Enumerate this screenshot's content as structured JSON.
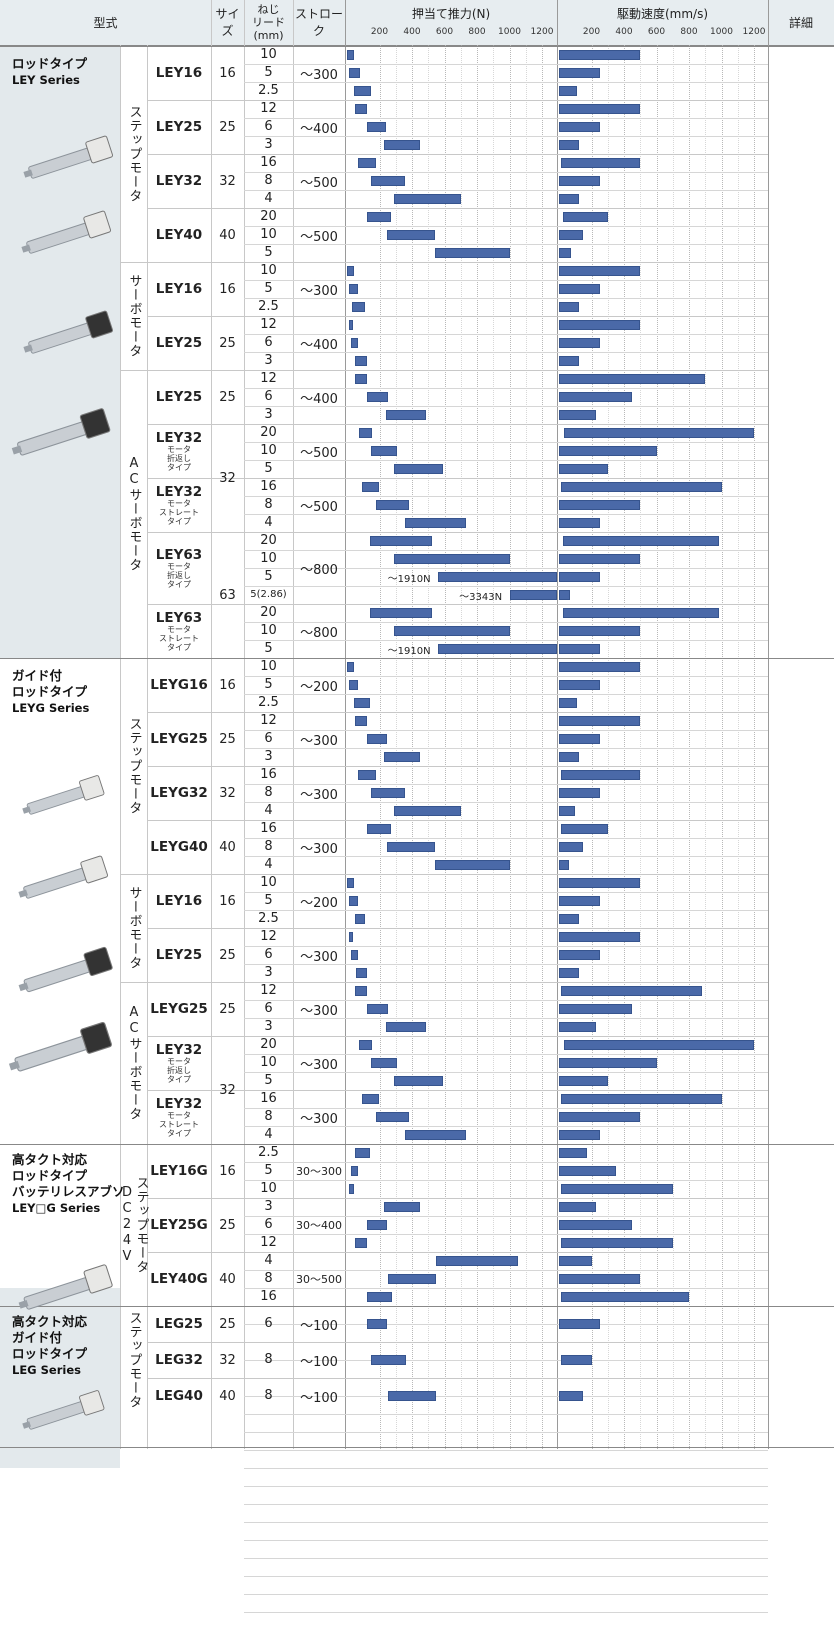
{
  "headers": {
    "model_type": "型式",
    "size": "サイズ",
    "lead": "ねじ\nリード\n(mm)",
    "stroke": "ストローク",
    "force": "押当て推力(N)",
    "speed": "駆動速度(mm/s)",
    "details": "詳細"
  },
  "axis_ticks": [
    "200",
    "400",
    "600",
    "800",
    "1000",
    "1200"
  ],
  "bar_color": "#4a69a8",
  "series": [
    {
      "id": "ley",
      "lines": [
        "ロッドタイプ",
        "LEY Series"
      ]
    },
    {
      "id": "leyg",
      "lines": [
        "ガイド付",
        "ロッドタイプ",
        "LEYG Series"
      ]
    },
    {
      "id": "leyg_batt",
      "lines": [
        "高タクト対応",
        "ロッドタイプ",
        "バッテリレスアブソ",
        "LEY□G Series"
      ]
    },
    {
      "id": "leg",
      "lines": [
        "高タクト対応",
        "ガイド付",
        "ロッドタイプ",
        "LEG Series"
      ]
    }
  ],
  "motor_groups": [
    {
      "label": "ステップモータ"
    },
    {
      "label": "サーボモータ"
    },
    {
      "label": "ACサーボモータ"
    },
    {
      "label": "ステップモータ"
    },
    {
      "label": "サーボモータ"
    },
    {
      "label": "ACサーボモータ"
    },
    {
      "label": "ステップモータDC24V"
    },
    {
      "label": "ステップモータ"
    }
  ],
  "models": [
    {
      "name": "LEY16",
      "note": ""
    },
    {
      "name": "LEY25",
      "note": ""
    },
    {
      "name": "LEY32",
      "note": ""
    },
    {
      "name": "LEY40",
      "note": ""
    },
    {
      "name": "LEY16",
      "note": ""
    },
    {
      "name": "LEY25",
      "note": ""
    },
    {
      "name": "LEY25",
      "note": ""
    },
    {
      "name": "LEY32",
      "note": "モータ\n折返し\nタイプ"
    },
    {
      "name": "LEY32",
      "note": "モータ\nストレート\nタイプ"
    },
    {
      "name": "LEY63",
      "note": "モータ\n折返し\nタイプ"
    },
    {
      "name": "LEY63",
      "note": "モータ\nストレート\nタイプ"
    },
    {
      "name": "LEYG16",
      "note": ""
    },
    {
      "name": "LEYG25",
      "note": ""
    },
    {
      "name": "LEYG32",
      "note": ""
    },
    {
      "name": "LEYG40",
      "note": ""
    },
    {
      "name": "LEY16",
      "note": ""
    },
    {
      "name": "LEY25",
      "note": ""
    },
    {
      "name": "LEYG25",
      "note": ""
    },
    {
      "name": "LEY32",
      "note": "モータ\n折返し\nタイプ"
    },
    {
      "name": "LEY32",
      "note": "モータ\nストレート\nタイプ"
    },
    {
      "name": "LEY16G",
      "note": ""
    },
    {
      "name": "LEY25G",
      "note": ""
    },
    {
      "name": "LEY40G",
      "note": ""
    },
    {
      "name": "LEG25",
      "note": ""
    },
    {
      "name": "LEG32",
      "note": ""
    },
    {
      "name": "LEG40",
      "note": ""
    }
  ],
  "sizes": [
    "16",
    "25",
    "32",
    "40",
    "16",
    "25",
    "25",
    "32",
    "63",
    "16",
    "25",
    "32",
    "40",
    "16",
    "25",
    "25",
    "32",
    "16",
    "25",
    "40",
    "25",
    "32",
    "40"
  ],
  "strokes": [
    "～300",
    "～400",
    "～500",
    "～500",
    "～300",
    "～400",
    "～400",
    "～500",
    "～500",
    "～800",
    "～800",
    "～200",
    "～300",
    "～300",
    "～300",
    "～200",
    "～300",
    "～300",
    "～300",
    "～300",
    "30～300",
    "30～400",
    "30～500",
    "～100",
    "～100",
    "～100"
  ],
  "rows": [
    {
      "lead": "10",
      "force": [
        0,
        40
      ],
      "speed": [
        0,
        500
      ]
    },
    {
      "lead": "5",
      "force": [
        10,
        80
      ],
      "speed": [
        0,
        250
      ]
    },
    {
      "lead": "2.5",
      "force": [
        40,
        150
      ],
      "speed": [
        0,
        110
      ]
    },
    {
      "lead": "12",
      "force": [
        50,
        120
      ],
      "speed": [
        0,
        500
      ]
    },
    {
      "lead": "6",
      "force": [
        125,
        240
      ],
      "speed": [
        0,
        250
      ]
    },
    {
      "lead": "3",
      "force": [
        225,
        450
      ],
      "speed": [
        0,
        125
      ]
    },
    {
      "lead": "16",
      "force": [
        65,
        180
      ],
      "speed": [
        15,
        500
      ]
    },
    {
      "lead": "8",
      "force": [
        145,
        355
      ],
      "speed": [
        0,
        250
      ]
    },
    {
      "lead": "4",
      "force": [
        290,
        700
      ],
      "speed": [
        0,
        125
      ]
    },
    {
      "lead": "20",
      "force": [
        120,
        270
      ],
      "speed": [
        25,
        300
      ]
    },
    {
      "lead": "10",
      "force": [
        245,
        540
      ],
      "speed": [
        0,
        150
      ]
    },
    {
      "lead": "5",
      "force": [
        540,
        1000
      ],
      "speed": [
        0,
        75
      ]
    },
    {
      "lead": "10",
      "force": [
        0,
        40
      ],
      "speed": [
        0,
        500
      ]
    },
    {
      "lead": "5",
      "force": [
        10,
        70
      ],
      "speed": [
        0,
        250
      ]
    },
    {
      "lead": "2.5",
      "force": [
        30,
        110
      ],
      "speed": [
        0,
        120
      ]
    },
    {
      "lead": "12",
      "force": [
        10,
        30
      ],
      "speed": [
        0,
        500
      ]
    },
    {
      "lead": "6",
      "force": [
        25,
        70
      ],
      "speed": [
        0,
        250
      ]
    },
    {
      "lead": "3",
      "force": [
        50,
        120
      ],
      "speed": [
        0,
        125
      ]
    },
    {
      "lead": "12",
      "force": [
        50,
        120
      ],
      "speed": [
        0,
        900
      ]
    },
    {
      "lead": "6",
      "force": [
        120,
        255
      ],
      "speed": [
        0,
        450
      ]
    },
    {
      "lead": "3",
      "force": [
        240,
        485
      ],
      "speed": [
        0,
        225
      ]
    },
    {
      "lead": "20",
      "force": [
        75,
        155
      ],
      "speed": [
        30,
        1200
      ]
    },
    {
      "lead": "10",
      "force": [
        150,
        305
      ],
      "speed": [
        0,
        600
      ]
    },
    {
      "lead": "5",
      "force": [
        290,
        590
      ],
      "speed": [
        0,
        300
      ]
    },
    {
      "lead": "16",
      "force": [
        90,
        195
      ],
      "speed": [
        15,
        1000
      ]
    },
    {
      "lead": "8",
      "force": [
        180,
        380
      ],
      "speed": [
        0,
        500
      ]
    },
    {
      "lead": "4",
      "force": [
        355,
        730
      ],
      "speed": [
        0,
        250
      ]
    },
    {
      "lead": "20",
      "force": [
        140,
        525
      ],
      "speed": [
        25,
        985
      ]
    },
    {
      "lead": "10",
      "force": [
        290,
        1000
      ],
      "speed": [
        0,
        500
      ]
    },
    {
      "lead": "5",
      "force": [
        560,
        1290
      ],
      "speed": [
        0,
        250
      ],
      "label": "～1910N",
      "label_at": 250
    },
    {
      "lead": "5(2.86)",
      "force": [
        1000,
        1290
      ],
      "speed": [
        0,
        65
      ],
      "label": "～3343N",
      "label_at": 690
    },
    {
      "lead": "20",
      "force": [
        140,
        525
      ],
      "speed": [
        25,
        985
      ]
    },
    {
      "lead": "10",
      "force": [
        290,
        1000
      ],
      "speed": [
        0,
        500
      ]
    },
    {
      "lead": "5",
      "force": [
        560,
        1290
      ],
      "speed": [
        0,
        250
      ],
      "label": "～1910N",
      "label_at": 250
    },
    {
      "lead": "10",
      "force": [
        0,
        40
      ],
      "speed": [
        0,
        500
      ]
    },
    {
      "lead": "5",
      "force": [
        10,
        70
      ],
      "speed": [
        0,
        250
      ]
    },
    {
      "lead": "2.5",
      "force": [
        40,
        140
      ],
      "speed": [
        0,
        110
      ]
    },
    {
      "lead": "12",
      "force": [
        50,
        125
      ],
      "speed": [
        0,
        500
      ]
    },
    {
      "lead": "6",
      "force": [
        125,
        245
      ],
      "speed": [
        0,
        250
      ]
    },
    {
      "lead": "3",
      "force": [
        225,
        450
      ],
      "speed": [
        0,
        125
      ]
    },
    {
      "lead": "16",
      "force": [
        65,
        180
      ],
      "speed": [
        15,
        500
      ]
    },
    {
      "lead": "8",
      "force": [
        145,
        355
      ],
      "speed": [
        0,
        250
      ]
    },
    {
      "lead": "4",
      "force": [
        290,
        700
      ],
      "speed": [
        0,
        100
      ]
    },
    {
      "lead": "16",
      "force": [
        120,
        270
      ],
      "speed": [
        15,
        300
      ]
    },
    {
      "lead": "8",
      "force": [
        245,
        540
      ],
      "speed": [
        0,
        150
      ]
    },
    {
      "lead": "4",
      "force": [
        540,
        1000
      ],
      "speed": [
        0,
        60
      ]
    },
    {
      "lead": "10",
      "force": [
        0,
        40
      ],
      "speed": [
        0,
        500
      ]
    },
    {
      "lead": "5",
      "force": [
        10,
        70
      ],
      "speed": [
        0,
        250
      ]
    },
    {
      "lead": "2.5",
      "force": [
        50,
        110
      ],
      "speed": [
        0,
        120
      ]
    },
    {
      "lead": "12",
      "force": [
        10,
        30
      ],
      "speed": [
        0,
        500
      ]
    },
    {
      "lead": "6",
      "force": [
        25,
        70
      ],
      "speed": [
        0,
        250
      ]
    },
    {
      "lead": "3",
      "force": [
        55,
        125
      ],
      "speed": [
        0,
        125
      ]
    },
    {
      "lead": "12",
      "force": [
        50,
        120
      ],
      "speed": [
        15,
        880
      ]
    },
    {
      "lead": "6",
      "force": [
        120,
        255
      ],
      "speed": [
        0,
        450
      ]
    },
    {
      "lead": "3",
      "force": [
        240,
        485
      ],
      "speed": [
        0,
        225
      ]
    },
    {
      "lead": "20",
      "force": [
        75,
        155
      ],
      "speed": [
        30,
        1200
      ]
    },
    {
      "lead": "10",
      "force": [
        150,
        305
      ],
      "speed": [
        0,
        600
      ]
    },
    {
      "lead": "5",
      "force": [
        290,
        590
      ],
      "speed": [
        0,
        300
      ]
    },
    {
      "lead": "16",
      "force": [
        90,
        195
      ],
      "speed": [
        15,
        1000
      ]
    },
    {
      "lead": "8",
      "force": [
        180,
        380
      ],
      "speed": [
        0,
        500
      ]
    },
    {
      "lead": "4",
      "force": [
        355,
        730
      ],
      "speed": [
        0,
        250
      ]
    },
    {
      "lead": "2.5",
      "force": [
        50,
        140
      ],
      "speed": [
        0,
        170
      ]
    },
    {
      "lead": "5",
      "force": [
        25,
        70
      ],
      "speed": [
        0,
        350
      ]
    },
    {
      "lead": "10",
      "force": [
        10,
        40
      ],
      "speed": [
        15,
        700
      ]
    },
    {
      "lead": "3",
      "force": [
        225,
        450
      ],
      "speed": [
        0,
        230
      ]
    },
    {
      "lead": "6",
      "force": [
        125,
        245
      ],
      "speed": [
        0,
        450
      ]
    },
    {
      "lead": "12",
      "force": [
        50,
        125
      ],
      "speed": [
        15,
        700
      ]
    },
    {
      "lead": "4",
      "force": [
        550,
        1050
      ],
      "speed": [
        0,
        200
      ]
    },
    {
      "lead": "8",
      "force": [
        255,
        545
      ],
      "speed": [
        0,
        500
      ]
    },
    {
      "lead": "16",
      "force": [
        125,
        275
      ],
      "speed": [
        15,
        800
      ]
    },
    {
      "lead": "6",
      "force": [
        125,
        245
      ],
      "speed": [
        0,
        250
      ]
    },
    {
      "lead": "8",
      "force": [
        145,
        360
      ],
      "speed": [
        15,
        200
      ]
    },
    {
      "lead": "8",
      "force": [
        255,
        545
      ],
      "speed": [
        0,
        150
      ]
    }
  ]
}
